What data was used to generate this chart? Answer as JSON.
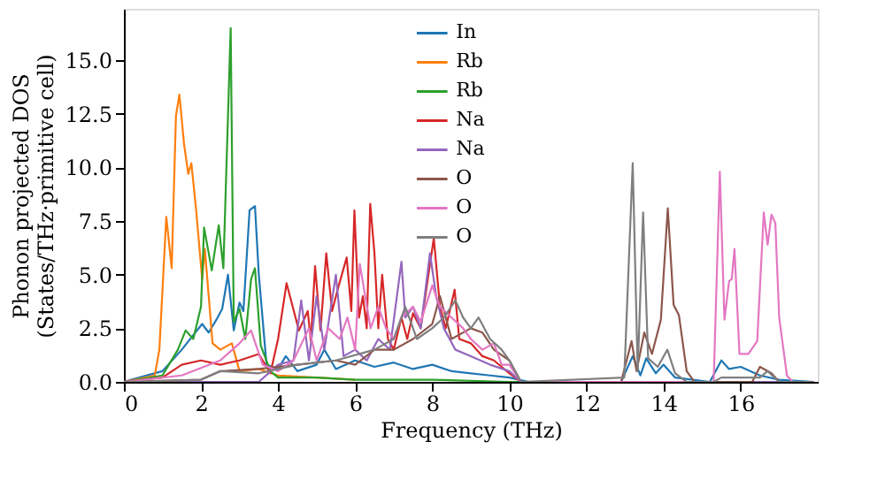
{
  "chart_data": {
    "type": "line",
    "xlabel": "Frequency (THz)",
    "ylabel": "Phonon projected DOS\n(States/THz·primitive cell)",
    "xlim": [
      0,
      18
    ],
    "ylim": [
      0,
      17.4
    ],
    "xticks": [
      0,
      2,
      4,
      6,
      8,
      10,
      12,
      14,
      16
    ],
    "yticks": [
      {
        "value": 0,
        "label": "0.0"
      },
      {
        "value": 2.5,
        "label": "2.5"
      },
      {
        "value": 5,
        "label": "5.0"
      },
      {
        "value": 7.5,
        "label": "7.5"
      },
      {
        "value": 10,
        "label": "10.0"
      },
      {
        "value": 12.5,
        "label": "12.5"
      },
      {
        "value": 15,
        "label": "15.0"
      }
    ],
    "grid": false,
    "legend": "top",
    "line_style": "solid",
    "marker": "none",
    "series": [
      {
        "name": "In",
        "color": "#1f77b4",
        "x": [
          0,
          1.0,
          1.5,
          2.03,
          2.2,
          2.4,
          2.55,
          2.7,
          2.85,
          3.0,
          3.1,
          3.26,
          3.4,
          3.5,
          3.7,
          4.0,
          4.2,
          4.5,
          5.0,
          5.2,
          5.5,
          6.0,
          6.5,
          7.0,
          7.5,
          8.0,
          8.5,
          9.0,
          9.5,
          10.0,
          10.5,
          12.9,
          13.2,
          13.4,
          13.55,
          13.8,
          14.0,
          14.3,
          15.2,
          15.5,
          15.7,
          16.0,
          16.5,
          17.0,
          17.9
        ],
        "values": [
          0,
          0.5,
          1.5,
          2.7,
          2.3,
          2.9,
          3.4,
          5.0,
          2.4,
          3.7,
          3.3,
          8.0,
          8.2,
          5.0,
          0.8,
          0.6,
          1.2,
          0.5,
          0.8,
          1.5,
          0.6,
          1.0,
          0.7,
          0.9,
          0.6,
          0.8,
          0.5,
          0.4,
          0.3,
          0.2,
          0,
          0,
          1.2,
          0.3,
          1.1,
          0.4,
          0.8,
          0.2,
          0,
          1.0,
          0.6,
          0.7,
          0.3,
          0.1,
          0
        ]
      },
      {
        "name": "Rb",
        "color": "#ff7f0e",
        "x": [
          0,
          0.8,
          0.92,
          1.1,
          1.24,
          1.35,
          1.44,
          1.56,
          1.67,
          1.75,
          1.87,
          2.03,
          2.1,
          2.3,
          2.5,
          2.8,
          3.0,
          3.5,
          4.0,
          5.0,
          6.0
        ],
        "values": [
          0,
          0.3,
          1.5,
          7.7,
          5.3,
          12.4,
          13.4,
          11.1,
          9.7,
          10.2,
          8.1,
          4.8,
          6.2,
          1.8,
          1.5,
          1.8,
          0.5,
          0.6,
          0.3,
          0.2,
          0.1
        ]
      },
      {
        "name": "Rb",
        "color": "#2ca02c",
        "x": [
          0,
          1.0,
          1.4,
          1.6,
          1.8,
          2.0,
          2.08,
          2.28,
          2.46,
          2.58,
          2.77,
          2.85,
          3.0,
          3.15,
          3.3,
          3.4,
          3.55,
          3.8,
          4.0,
          5.0,
          6.0,
          8.0,
          10.0,
          10.5,
          17.9
        ],
        "values": [
          0,
          0.3,
          1.5,
          2.4,
          2.0,
          3.5,
          7.2,
          5.2,
          7.3,
          5.3,
          16.5,
          2.8,
          3.4,
          2.0,
          4.8,
          5.3,
          1.7,
          0.5,
          0.2,
          0.2,
          0.1,
          0.1,
          0,
          0,
          0
        ]
      },
      {
        "name": "Na",
        "color": "#d62728",
        "x": [
          0,
          1.0,
          1.5,
          2.0,
          2.5,
          3.0,
          3.5,
          3.8,
          4.0,
          4.22,
          4.54,
          4.77,
          4.85,
          4.96,
          5.1,
          5.25,
          5.4,
          5.56,
          5.78,
          5.9,
          5.98,
          6.1,
          6.2,
          6.3,
          6.39,
          6.5,
          6.6,
          6.7,
          6.85,
          7.0,
          7.2,
          7.35,
          7.5,
          7.7,
          7.9,
          8.04,
          8.2,
          8.35,
          8.58,
          8.7,
          9.0,
          9.3,
          9.6,
          10.0,
          10.3,
          17.9
        ],
        "values": [
          0,
          0.2,
          0.8,
          1.0,
          0.8,
          1.0,
          1.3,
          0.4,
          2.0,
          4.6,
          2.4,
          3.3,
          1.9,
          5.4,
          2.4,
          6.0,
          3.3,
          4.4,
          5.8,
          3.3,
          8.0,
          3.0,
          4.0,
          2.5,
          8.3,
          6.0,
          2.5,
          5.0,
          2.0,
          1.5,
          3.0,
          2.0,
          3.2,
          2.5,
          5.0,
          6.7,
          3.5,
          2.5,
          4.3,
          2.0,
          1.8,
          1.2,
          1.0,
          0.4,
          0,
          0
        ]
      },
      {
        "name": "Na",
        "color": "#9467bd",
        "x": [
          0,
          3.5,
          4.0,
          4.4,
          4.6,
          4.8,
          5.0,
          5.2,
          5.5,
          5.7,
          6.0,
          6.3,
          6.6,
          6.9,
          7.2,
          7.3,
          7.5,
          7.7,
          7.94,
          8.1,
          8.3,
          8.6,
          9.0,
          9.5,
          10.0,
          10.3,
          17.9
        ],
        "values": [
          0,
          0,
          0.8,
          1.0,
          3.8,
          1.0,
          4.0,
          1.5,
          5.0,
          1.2,
          1.5,
          1.0,
          2.0,
          1.5,
          5.6,
          3.0,
          3.5,
          2.5,
          6.0,
          4.0,
          2.5,
          1.5,
          1.2,
          0.8,
          0.5,
          0,
          0
        ]
      },
      {
        "name": "O",
        "color": "#8c564b",
        "x": [
          0,
          2.0,
          2.5,
          3.5,
          4.5,
          5.5,
          6.0,
          6.5,
          7.0,
          7.5,
          8.0,
          8.2,
          8.5,
          9.0,
          9.3,
          9.6,
          10.0,
          10.3,
          12.9,
          13.17,
          13.3,
          13.5,
          13.7,
          13.93,
          14.11,
          14.26,
          14.4,
          14.6,
          14.8,
          16.3,
          16.5,
          16.8,
          17.0,
          17.9
        ],
        "values": [
          0,
          0.1,
          0.5,
          0.6,
          0.8,
          1.0,
          0.8,
          1.5,
          1.5,
          2.0,
          2.7,
          4.0,
          2.0,
          2.5,
          2.3,
          1.5,
          1.0,
          0,
          0,
          1.9,
          0.5,
          2.3,
          1.3,
          2.9,
          8.1,
          3.6,
          3.1,
          0.5,
          0,
          0,
          0.7,
          0.4,
          0,
          0
        ]
      },
      {
        "name": "O",
        "color": "#e377c2",
        "x": [
          0,
          1.5,
          2.5,
          3.0,
          3.3,
          3.6,
          4.0,
          4.4,
          4.8,
          5.0,
          5.3,
          5.6,
          5.8,
          6.0,
          6.12,
          6.4,
          6.6,
          6.8,
          7.0,
          7.2,
          7.5,
          7.7,
          8.0,
          8.2,
          8.5,
          8.8,
          9.0,
          9.3,
          9.6,
          9.8,
          10.0,
          10.3,
          15.3,
          15.46,
          15.58,
          15.7,
          15.77,
          15.84,
          15.97,
          16.2,
          16.43,
          16.6,
          16.7,
          16.8,
          16.9,
          17.0,
          17.2,
          17.35,
          17.9
        ],
        "values": [
          0,
          0.3,
          1.0,
          1.8,
          2.4,
          0.8,
          0.5,
          1.0,
          2.5,
          1.0,
          2.5,
          2.0,
          3.0,
          1.5,
          5.5,
          2.5,
          3.5,
          2.5,
          2.0,
          3.0,
          3.5,
          2.8,
          4.5,
          3.5,
          3.0,
          2.5,
          2.0,
          1.5,
          1.8,
          0.8,
          0.8,
          0,
          0,
          9.8,
          2.9,
          4.7,
          4.8,
          6.2,
          1.3,
          1.3,
          1.9,
          7.9,
          6.4,
          7.8,
          7.4,
          3.0,
          0.3,
          0,
          0
        ]
      },
      {
        "name": "O",
        "color": "#7f7f7f",
        "x": [
          0,
          2.0,
          2.5,
          3.5,
          4.5,
          5.5,
          6.5,
          7.0,
          7.3,
          7.6,
          8.0,
          8.3,
          8.6,
          8.8,
          9.0,
          9.2,
          9.5,
          9.8,
          10.0,
          10.3,
          12.98,
          13.2,
          13.33,
          13.47,
          13.6,
          13.85,
          14.1,
          14.3,
          14.6,
          15.3,
          15.5,
          16.5,
          16.7,
          17.0,
          17.9
        ],
        "values": [
          0,
          0.1,
          0.5,
          0.4,
          0.8,
          1.0,
          1.5,
          2.0,
          3.5,
          2.0,
          2.5,
          3.0,
          3.8,
          3.0,
          2.5,
          3.0,
          2.0,
          1.5,
          1.0,
          0,
          0.2,
          10.2,
          0.5,
          7.9,
          1.1,
          0.7,
          1.5,
          0.4,
          0,
          0,
          0.2,
          0.2,
          0.5,
          0,
          0
        ]
      }
    ]
  }
}
